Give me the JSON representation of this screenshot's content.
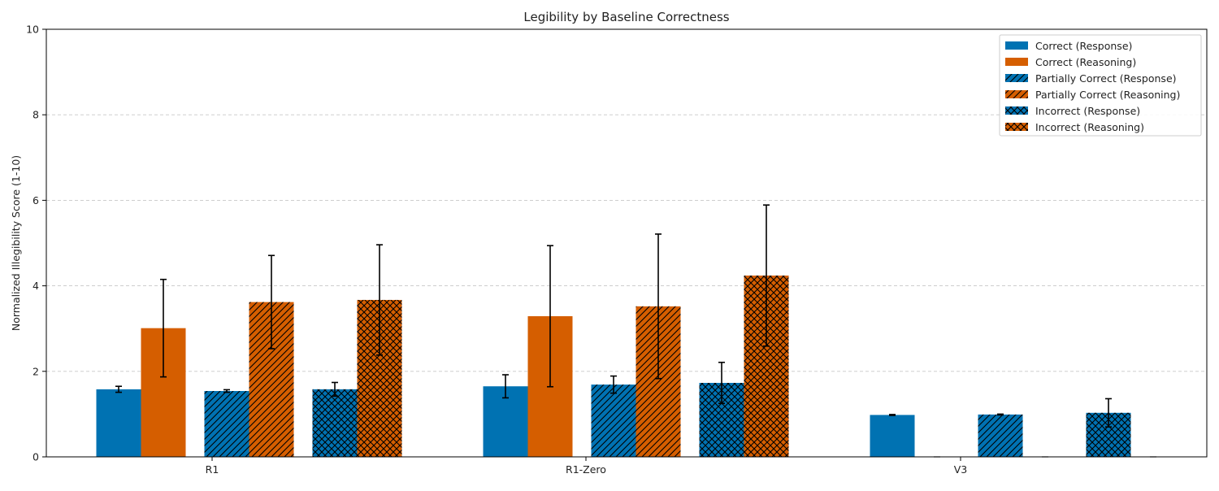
{
  "chart_data": {
    "type": "bar",
    "title": "Legibility by Baseline Correctness",
    "xlabel": "",
    "ylabel": "Normalized Illegibility Score (1-10)",
    "ylim": [
      0,
      10
    ],
    "yticks": [
      0,
      2,
      4,
      6,
      8,
      10
    ],
    "grid": "y-dashed",
    "legend_position": "top-right",
    "categories": [
      "R1",
      "R1-Zero",
      "V3"
    ],
    "series": [
      {
        "name": "Correct (Response)",
        "color": "#0072b2",
        "hatch": "none",
        "values": [
          1.58,
          1.65,
          0.98
        ],
        "errors": [
          0.07,
          0.27,
          0.01
        ]
      },
      {
        "name": "Correct (Reasoning)",
        "color": "#d55e00",
        "hatch": "none",
        "values": [
          3.01,
          3.29,
          0.0
        ],
        "errors": [
          1.14,
          1.65,
          0.0
        ]
      },
      {
        "name": "Partially Correct (Response)",
        "color": "#0072b2",
        "hatch": "diagonal",
        "values": [
          1.54,
          1.69,
          0.99
        ],
        "errors": [
          0.03,
          0.2,
          0.01
        ]
      },
      {
        "name": "Partially Correct (Reasoning)",
        "color": "#d55e00",
        "hatch": "diagonal",
        "values": [
          3.62,
          3.52,
          0.0
        ],
        "errors": [
          1.09,
          1.69,
          0.0
        ]
      },
      {
        "name": "Incorrect (Response)",
        "color": "#0072b2",
        "hatch": "cross",
        "values": [
          1.58,
          1.73,
          1.03
        ],
        "errors": [
          0.16,
          0.48,
          0.33
        ]
      },
      {
        "name": "Incorrect (Reasoning)",
        "color": "#d55e00",
        "hatch": "cross",
        "values": [
          3.67,
          4.24,
          0.0
        ],
        "errors": [
          1.29,
          1.65,
          0.0
        ]
      }
    ]
  }
}
